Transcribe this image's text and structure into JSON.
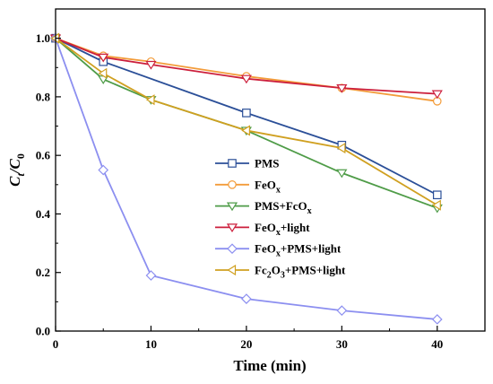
{
  "chart_data": {
    "type": "line",
    "xlabel": "Time (min)",
    "ylabel_main": "C",
    "ylabel_sub1": "t",
    "ylabel_sep": "/C",
    "ylabel_sub2": "0",
    "xlim": [
      0,
      45
    ],
    "ylim": [
      0,
      1.1
    ],
    "xticks": [
      "0",
      "10",
      "20",
      "30",
      "40"
    ],
    "yticks": [
      "0.0",
      "0.2",
      "0.4",
      "0.6",
      "0.8",
      "1.0"
    ],
    "legend_position": "center",
    "grid": false,
    "series": [
      {
        "name": "PMS",
        "name_main": "PMS",
        "name_sub": "",
        "name_tail": "",
        "color": "#2b4f98",
        "marker": "square",
        "x": [
          0,
          5,
          20,
          30,
          40
        ],
        "y": [
          1.0,
          0.92,
          0.745,
          0.635,
          0.465
        ]
      },
      {
        "name": "FeOx",
        "name_main": "FeO",
        "name_sub": "x",
        "name_tail": "",
        "color": "#f39c3a",
        "marker": "circle",
        "x": [
          0,
          5,
          10,
          20,
          30,
          40
        ],
        "y": [
          1.0,
          0.94,
          0.92,
          0.87,
          0.83,
          0.785
        ]
      },
      {
        "name": "PMS+FcOx",
        "name_main": "PMS+FcO",
        "name_sub": "x",
        "name_tail": "",
        "color": "#4f9c48",
        "marker": "triangle-down",
        "x": [
          0,
          5,
          10,
          20,
          30,
          40
        ],
        "y": [
          1.0,
          0.86,
          0.79,
          0.685,
          0.54,
          0.42
        ]
      },
      {
        "name": "FeOx+light",
        "name_main": "FeO",
        "name_sub": "x",
        "name_tail": "+light",
        "color": "#cc1f3c",
        "marker": "triangle-down",
        "x": [
          0,
          5,
          10,
          20,
          30,
          40
        ],
        "y": [
          1.0,
          0.935,
          0.91,
          0.862,
          0.83,
          0.81
        ]
      },
      {
        "name": "FeOx+PMS+light",
        "name_main": "FeO",
        "name_sub": "x",
        "name_tail": "+PMS+light",
        "color": "#8c8ff0",
        "marker": "diamond",
        "x": [
          0,
          5,
          10,
          20,
          30,
          40
        ],
        "y": [
          1.0,
          0.55,
          0.19,
          0.11,
          0.07,
          0.04
        ]
      },
      {
        "name": "Fc2O3+PMS+light",
        "name_main": "Fc",
        "name_sub": "2",
        "name_tail": "O",
        "name_sub2": "3",
        "name_tail2": "+PMS+light",
        "color": "#d0a020",
        "marker": "triangle-left",
        "x": [
          0,
          5,
          10,
          20,
          30,
          40
        ],
        "y": [
          1.0,
          0.88,
          0.79,
          0.685,
          0.625,
          0.43
        ]
      }
    ]
  }
}
